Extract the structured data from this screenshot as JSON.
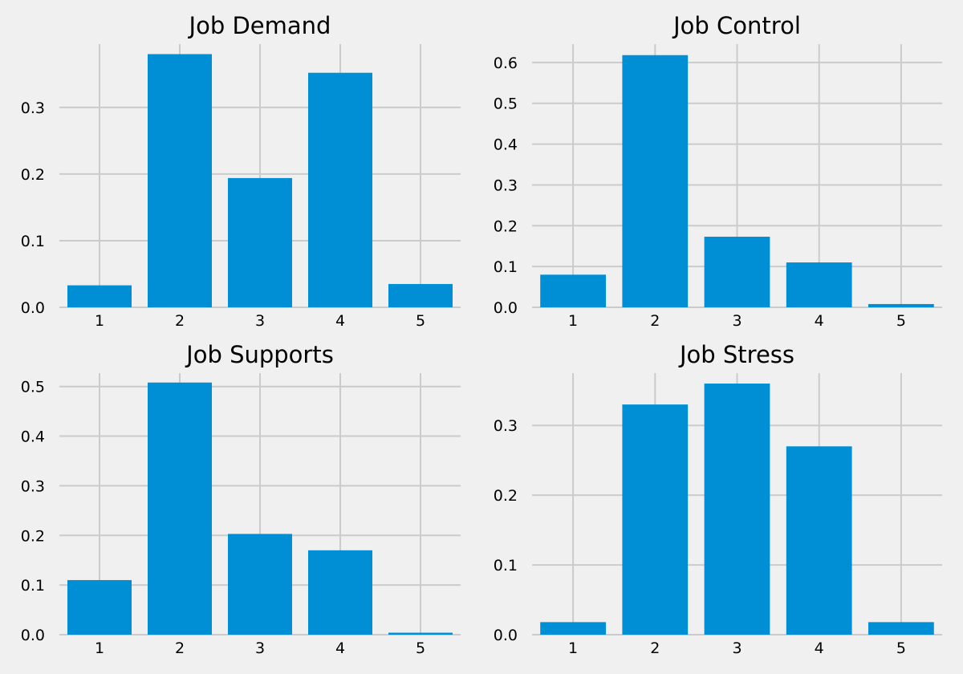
{
  "colors": {
    "background": "#f0f0f0",
    "bar": "#008fd5",
    "grid": "#cbcbcb"
  },
  "chart_data": [
    {
      "type": "bar",
      "title": "Job Demand",
      "categories": [
        "1",
        "2",
        "3",
        "4",
        "5"
      ],
      "values": [
        0.033,
        0.38,
        0.194,
        0.352,
        0.035
      ],
      "ylim": [
        0,
        0.395
      ],
      "yticks": [
        "0.0",
        "0.1",
        "0.2",
        "0.3"
      ],
      "grid": true
    },
    {
      "type": "bar",
      "title": "Job Control",
      "categories": [
        "1",
        "2",
        "3",
        "4",
        "5"
      ],
      "values": [
        0.08,
        0.618,
        0.173,
        0.11,
        0.008
      ],
      "ylim": [
        0,
        0.645
      ],
      "yticks": [
        "0.0",
        "0.1",
        "0.2",
        "0.3",
        "0.4",
        "0.5",
        "0.6"
      ],
      "grid": true
    },
    {
      "type": "bar",
      "title": "Job Supports",
      "categories": [
        "1",
        "2",
        "3",
        "4",
        "5"
      ],
      "values": [
        0.11,
        0.508,
        0.203,
        0.17,
        0.004
      ],
      "ylim": [
        0,
        0.527
      ],
      "yticks": [
        "0.0",
        "0.1",
        "0.2",
        "0.3",
        "0.4",
        "0.5"
      ],
      "grid": true
    },
    {
      "type": "bar",
      "title": "Job Stress",
      "categories": [
        "1",
        "2",
        "3",
        "4",
        "5"
      ],
      "values": [
        0.018,
        0.33,
        0.36,
        0.27,
        0.018
      ],
      "ylim": [
        0,
        0.375
      ],
      "yticks": [
        "0.0",
        "0.1",
        "0.2",
        "0.3"
      ],
      "grid": true
    }
  ]
}
